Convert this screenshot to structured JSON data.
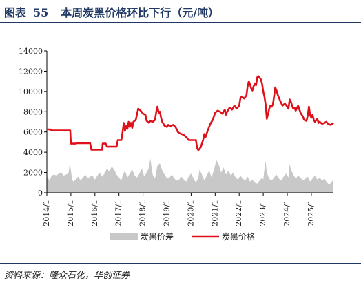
{
  "header": {
    "label": "图表",
    "number": "55",
    "title": "本周炭黑价格环比下行（元/吨）"
  },
  "source": "资料来源：隆众石化，华创证券",
  "chart_data": {
    "type": "line",
    "ylim": [
      0,
      14000
    ],
    "yticks": [
      0,
      2000,
      4000,
      6000,
      8000,
      10000,
      12000,
      14000
    ],
    "xlim": [
      2014.0,
      2025.92
    ],
    "xticks": [
      {
        "x": 2014.0,
        "label": "2014/1"
      },
      {
        "x": 2015.0,
        "label": "2015/1"
      },
      {
        "x": 2016.0,
        "label": "2016/1"
      },
      {
        "x": 2017.0,
        "label": "2017/1"
      },
      {
        "x": 2018.0,
        "label": "2018/1"
      },
      {
        "x": 2019.0,
        "label": "2019/1"
      },
      {
        "x": 2020.0,
        "label": "2020/1"
      },
      {
        "x": 2021.0,
        "label": "2021/1"
      },
      {
        "x": 2022.0,
        "label": "2022/1"
      },
      {
        "x": 2023.0,
        "label": "2023/1"
      },
      {
        "x": 2024.0,
        "label": "2024/1"
      },
      {
        "x": 2025.0,
        "label": "2025/1"
      }
    ],
    "legend": {
      "position": "bottom"
    },
    "series": [
      {
        "name": "炭黑价差",
        "kind": "area",
        "color": "#c8c8c8",
        "points": [
          [
            2014.0,
            1600
          ],
          [
            2014.05,
            1500
          ],
          [
            2014.1,
            1200
          ],
          [
            2014.15,
            1400
          ],
          [
            2014.2,
            1700
          ],
          [
            2014.3,
            1800
          ],
          [
            2014.4,
            1700
          ],
          [
            2014.5,
            1900
          ],
          [
            2014.6,
            2000
          ],
          [
            2014.7,
            1700
          ],
          [
            2014.8,
            1800
          ],
          [
            2014.9,
            1900
          ],
          [
            2014.95,
            2900
          ],
          [
            2015.0,
            2200
          ],
          [
            2015.05,
            1300
          ],
          [
            2015.1,
            1100
          ],
          [
            2015.2,
            1300
          ],
          [
            2015.3,
            1600
          ],
          [
            2015.4,
            1200
          ],
          [
            2015.5,
            1500
          ],
          [
            2015.6,
            1800
          ],
          [
            2015.7,
            1400
          ],
          [
            2015.8,
            1600
          ],
          [
            2015.9,
            1700
          ],
          [
            2016.0,
            1300
          ],
          [
            2016.1,
            1700
          ],
          [
            2016.2,
            2000
          ],
          [
            2016.3,
            1600
          ],
          [
            2016.4,
            1900
          ],
          [
            2016.5,
            2400
          ],
          [
            2016.6,
            2100
          ],
          [
            2016.7,
            2600
          ],
          [
            2016.8,
            2300
          ],
          [
            2016.9,
            1800
          ],
          [
            2017.0,
            1500
          ],
          [
            2017.1,
            1200
          ],
          [
            2017.15,
            1700
          ],
          [
            2017.25,
            2200
          ],
          [
            2017.35,
            1500
          ],
          [
            2017.45,
            1900
          ],
          [
            2017.55,
            2300
          ],
          [
            2017.65,
            1700
          ],
          [
            2017.75,
            1500
          ],
          [
            2017.85,
            1900
          ],
          [
            2017.95,
            2400
          ],
          [
            2018.05,
            1600
          ],
          [
            2018.15,
            2000
          ],
          [
            2018.25,
            2500
          ],
          [
            2018.3,
            3400
          ],
          [
            2018.4,
            1800
          ],
          [
            2018.5,
            1400
          ],
          [
            2018.6,
            2700
          ],
          [
            2018.7,
            2900
          ],
          [
            2018.8,
            2200
          ],
          [
            2018.9,
            1800
          ],
          [
            2019.0,
            1400
          ],
          [
            2019.1,
            1500
          ],
          [
            2019.2,
            1800
          ],
          [
            2019.3,
            1400
          ],
          [
            2019.4,
            1200
          ],
          [
            2019.5,
            1300
          ],
          [
            2019.6,
            1600
          ],
          [
            2019.7,
            1300
          ],
          [
            2019.8,
            1100
          ],
          [
            2019.9,
            1600
          ],
          [
            2020.0,
            1900
          ],
          [
            2020.1,
            1400
          ],
          [
            2020.2,
            1000
          ],
          [
            2020.3,
            1500
          ],
          [
            2020.35,
            2300
          ],
          [
            2020.45,
            1800
          ],
          [
            2020.55,
            1200
          ],
          [
            2020.65,
            1700
          ],
          [
            2020.75,
            2200
          ],
          [
            2020.85,
            1500
          ],
          [
            2020.95,
            2300
          ],
          [
            2021.05,
            3200
          ],
          [
            2021.15,
            2800
          ],
          [
            2021.25,
            2000
          ],
          [
            2021.35,
            2500
          ],
          [
            2021.45,
            1800
          ],
          [
            2021.55,
            2200
          ],
          [
            2021.65,
            1700
          ],
          [
            2021.75,
            2000
          ],
          [
            2021.85,
            1500
          ],
          [
            2021.95,
            1300
          ],
          [
            2022.05,
            1700
          ],
          [
            2022.15,
            1400
          ],
          [
            2022.25,
            1200
          ],
          [
            2022.35,
            1600
          ],
          [
            2022.45,
            1100
          ],
          [
            2022.55,
            1300
          ],
          [
            2022.65,
            1000
          ],
          [
            2022.75,
            900
          ],
          [
            2022.85,
            1200
          ],
          [
            2022.95,
            1500
          ],
          [
            2023.0,
            1300
          ],
          [
            2023.05,
            2300
          ],
          [
            2023.1,
            3100
          ],
          [
            2023.15,
            2000
          ],
          [
            2023.25,
            1400
          ],
          [
            2023.35,
            1200
          ],
          [
            2023.45,
            1500
          ],
          [
            2023.55,
            1800
          ],
          [
            2023.65,
            1400
          ],
          [
            2023.75,
            1200
          ],
          [
            2023.85,
            1600
          ],
          [
            2023.95,
            1900
          ],
          [
            2024.05,
            1500
          ],
          [
            2024.1,
            2900
          ],
          [
            2024.15,
            2300
          ],
          [
            2024.25,
            1800
          ],
          [
            2024.35,
            1400
          ],
          [
            2024.45,
            1700
          ],
          [
            2024.55,
            1500
          ],
          [
            2024.65,
            1200
          ],
          [
            2024.75,
            1400
          ],
          [
            2024.85,
            1600
          ],
          [
            2024.95,
            1100
          ],
          [
            2025.05,
            1400
          ],
          [
            2025.15,
            1700
          ],
          [
            2025.25,
            1300
          ],
          [
            2025.35,
            1500
          ],
          [
            2025.45,
            1200
          ],
          [
            2025.55,
            1400
          ],
          [
            2025.65,
            1000
          ],
          [
            2025.75,
            800
          ],
          [
            2025.85,
            1100
          ],
          [
            2025.92,
            1300
          ]
        ]
      },
      {
        "name": "炭黑价格",
        "kind": "line",
        "color": "#e0101a",
        "points": [
          [
            2014.0,
            6250
          ],
          [
            2014.15,
            6250
          ],
          [
            2014.2,
            6150
          ],
          [
            2014.97,
            6150
          ],
          [
            2015.0,
            4850
          ],
          [
            2015.2,
            4850
          ],
          [
            2015.25,
            4900
          ],
          [
            2015.8,
            4900
          ],
          [
            2015.85,
            4250
          ],
          [
            2016.3,
            4250
          ],
          [
            2016.32,
            4850
          ],
          [
            2016.45,
            4850
          ],
          [
            2016.5,
            4550
          ],
          [
            2016.9,
            4550
          ],
          [
            2016.95,
            5200
          ],
          [
            2017.1,
            5200
          ],
          [
            2017.15,
            6000
          ],
          [
            2017.2,
            6900
          ],
          [
            2017.25,
            6100
          ],
          [
            2017.3,
            6600
          ],
          [
            2017.35,
            6300
          ],
          [
            2017.4,
            7000
          ],
          [
            2017.45,
            6500
          ],
          [
            2017.5,
            6900
          ],
          [
            2017.55,
            6400
          ],
          [
            2017.6,
            7000
          ],
          [
            2017.7,
            7200
          ],
          [
            2017.8,
            8300
          ],
          [
            2017.9,
            8100
          ],
          [
            2018.0,
            7800
          ],
          [
            2018.1,
            7700
          ],
          [
            2018.15,
            7100
          ],
          [
            2018.25,
            6900
          ],
          [
            2018.3,
            7100
          ],
          [
            2018.4,
            7000
          ],
          [
            2018.5,
            7200
          ],
          [
            2018.55,
            8000
          ],
          [
            2018.6,
            8500
          ],
          [
            2018.65,
            7900
          ],
          [
            2018.7,
            8000
          ],
          [
            2018.75,
            7400
          ],
          [
            2018.8,
            7000
          ],
          [
            2018.9,
            6600
          ],
          [
            2019.0,
            6500
          ],
          [
            2019.05,
            6700
          ],
          [
            2019.15,
            6600
          ],
          [
            2019.25,
            6700
          ],
          [
            2019.35,
            6500
          ],
          [
            2019.45,
            6000
          ],
          [
            2019.5,
            5900
          ],
          [
            2019.6,
            5800
          ],
          [
            2019.7,
            5700
          ],
          [
            2019.8,
            5500
          ],
          [
            2019.9,
            5200
          ],
          [
            2020.0,
            5200
          ],
          [
            2020.2,
            5200
          ],
          [
            2020.25,
            4400
          ],
          [
            2020.3,
            4200
          ],
          [
            2020.4,
            4500
          ],
          [
            2020.5,
            5200
          ],
          [
            2020.55,
            5800
          ],
          [
            2020.6,
            5500
          ],
          [
            2020.7,
            6200
          ],
          [
            2020.8,
            6800
          ],
          [
            2020.9,
            7200
          ],
          [
            2021.0,
            7900
          ],
          [
            2021.1,
            8100
          ],
          [
            2021.2,
            8000
          ],
          [
            2021.3,
            7800
          ],
          [
            2021.4,
            8200
          ],
          [
            2021.45,
            7700
          ],
          [
            2021.5,
            8000
          ],
          [
            2021.6,
            8400
          ],
          [
            2021.7,
            8200
          ],
          [
            2021.8,
            8600
          ],
          [
            2021.9,
            8300
          ],
          [
            2022.0,
            8600
          ],
          [
            2022.05,
            9300
          ],
          [
            2022.1,
            9500
          ],
          [
            2022.2,
            9300
          ],
          [
            2022.3,
            9600
          ],
          [
            2022.35,
            10500
          ],
          [
            2022.4,
            11000
          ],
          [
            2022.45,
            10700
          ],
          [
            2022.5,
            10300
          ],
          [
            2022.55,
            10100
          ],
          [
            2022.6,
            10500
          ],
          [
            2022.65,
            10800
          ],
          [
            2022.7,
            10600
          ],
          [
            2022.75,
            11400
          ],
          [
            2022.8,
            11500
          ],
          [
            2022.9,
            11200
          ],
          [
            2022.95,
            10800
          ],
          [
            2023.0,
            10000
          ],
          [
            2023.05,
            9500
          ],
          [
            2023.1,
            8700
          ],
          [
            2023.15,
            7300
          ],
          [
            2023.2,
            7800
          ],
          [
            2023.25,
            8300
          ],
          [
            2023.3,
            8600
          ],
          [
            2023.35,
            8500
          ],
          [
            2023.4,
            8700
          ],
          [
            2023.45,
            9500
          ],
          [
            2023.5,
            10400
          ],
          [
            2023.55,
            10100
          ],
          [
            2023.6,
            9700
          ],
          [
            2023.7,
            9100
          ],
          [
            2023.8,
            8600
          ],
          [
            2023.9,
            8800
          ],
          [
            2024.0,
            8500
          ],
          [
            2024.05,
            8300
          ],
          [
            2024.1,
            9200
          ],
          [
            2024.15,
            9000
          ],
          [
            2024.2,
            8600
          ],
          [
            2024.25,
            8300
          ],
          [
            2024.3,
            8400
          ],
          [
            2024.35,
            8100
          ],
          [
            2024.45,
            8600
          ],
          [
            2024.55,
            7900
          ],
          [
            2024.65,
            7500
          ],
          [
            2024.7,
            7200
          ],
          [
            2024.8,
            7100
          ],
          [
            2024.85,
            7600
          ],
          [
            2024.9,
            8500
          ],
          [
            2024.95,
            7700
          ],
          [
            2025.0,
            7400
          ],
          [
            2025.05,
            7700
          ],
          [
            2025.1,
            7200
          ],
          [
            2025.15,
            7000
          ],
          [
            2025.25,
            7300
          ],
          [
            2025.3,
            6900
          ],
          [
            2025.35,
            7000
          ],
          [
            2025.45,
            6800
          ],
          [
            2025.55,
            6900
          ],
          [
            2025.62,
            7000
          ],
          [
            2025.7,
            6800
          ],
          [
            2025.8,
            6700
          ],
          [
            2025.92,
            6900
          ]
        ]
      }
    ]
  }
}
